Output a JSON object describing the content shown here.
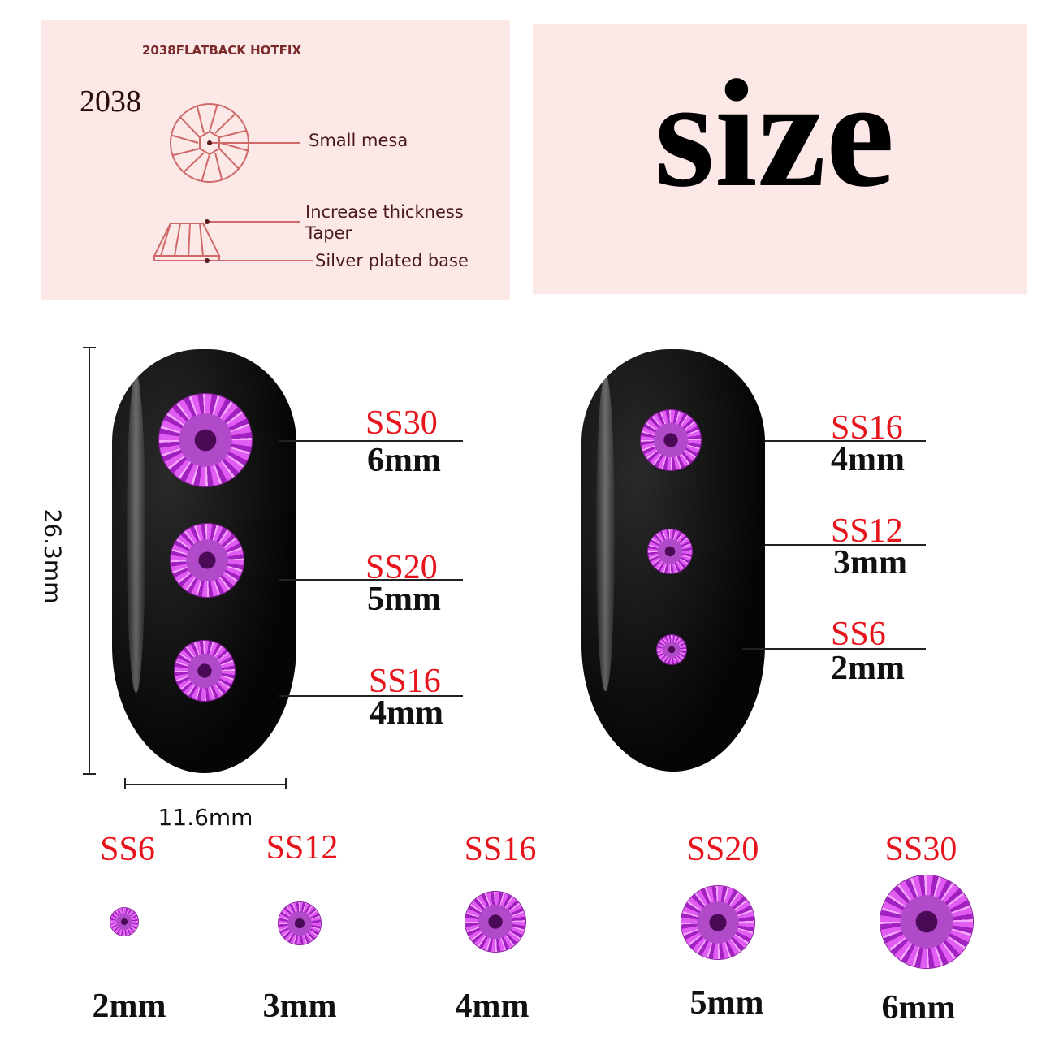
{
  "diagram": {
    "heading": "2038FLATBACK HOTFIX",
    "model": "2038",
    "labels": [
      "Small mesa",
      "Increase thickness",
      "Taper",
      "Silver plated base"
    ]
  },
  "title": "size",
  "nail_left": {
    "items": [
      {
        "size": "SS30",
        "mm": "6mm"
      },
      {
        "size": "SS20",
        "mm": "5mm"
      },
      {
        "size": "SS16",
        "mm": "4mm"
      }
    ],
    "height_label": "26.3mm",
    "width_label": "11.6mm"
  },
  "nail_right": {
    "items": [
      {
        "size": "SS16",
        "mm": "4mm"
      },
      {
        "size": "SS12",
        "mm": "3mm"
      },
      {
        "size": "SS6",
        "mm": "2mm"
      }
    ]
  },
  "bottom_row": [
    {
      "size": "SS6",
      "mm": "2mm"
    },
    {
      "size": "SS12",
      "mm": "3mm"
    },
    {
      "size": "SS16",
      "mm": "4mm"
    },
    {
      "size": "SS20",
      "mm": "5mm"
    },
    {
      "size": "SS30",
      "mm": "6mm"
    }
  ],
  "colors": {
    "panel": "#fbe8e7",
    "label_red": "#e8141c",
    "gem": "#d84ff0",
    "diagram_line": "#d06a6a"
  }
}
